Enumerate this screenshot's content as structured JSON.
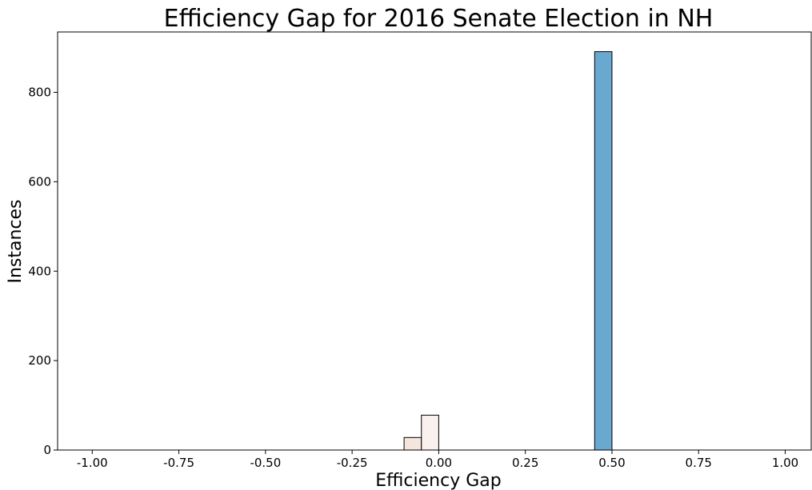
{
  "chart_data": {
    "type": "bar",
    "title": "Efficiency Gap for 2016 Senate Election in NH",
    "xlabel": "Efficiency Gap",
    "ylabel": "Instances",
    "xlim": [
      -1.1,
      1.075
    ],
    "ylim": [
      0,
      935
    ],
    "x_ticks": [
      "-1.00",
      "-0.75",
      "-0.50",
      "-0.25",
      "0.00",
      "0.25",
      "0.50",
      "0.75",
      "1.00"
    ],
    "x_tick_values": [
      -1.0,
      -0.75,
      -0.5,
      -0.25,
      0.0,
      0.25,
      0.5,
      0.75,
      1.0
    ],
    "y_ticks": [
      "0",
      "200",
      "400",
      "600",
      "800"
    ],
    "y_tick_values": [
      0,
      200,
      400,
      600,
      800
    ],
    "grid": false,
    "bars": [
      {
        "x_start": -0.1,
        "x_end": -0.05,
        "value": 28,
        "color": "#f5e6dd"
      },
      {
        "x_start": -0.05,
        "x_end": 0.0,
        "value": 78,
        "color": "#f9f1ee"
      },
      {
        "x_start": 0.45,
        "x_end": 0.5,
        "value": 891,
        "color": "#69a9d0"
      }
    ],
    "edge_color": "#000000"
  }
}
